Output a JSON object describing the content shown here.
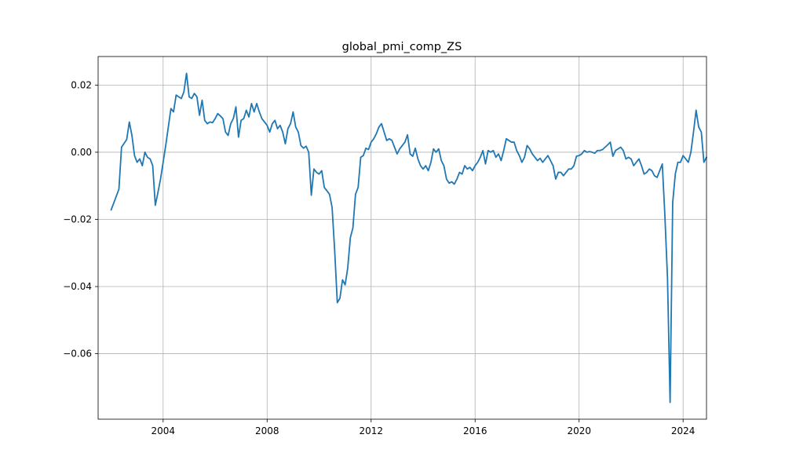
{
  "chart_data": {
    "type": "line",
    "title": "global_pmi_comp_ZS",
    "xlabel": "",
    "ylabel": "",
    "x_tick_labels": [
      "2004",
      "2008",
      "2012",
      "2016",
      "2020",
      "2024"
    ],
    "x_tick_values": [
      2004,
      2008,
      2012,
      2016,
      2020,
      2024
    ],
    "y_tick_labels": [
      "−0.06",
      "−0.04",
      "−0.02",
      "0.00",
      "0.02"
    ],
    "y_tick_values": [
      -0.06,
      -0.04,
      -0.02,
      0.0,
      0.02
    ],
    "xlim": [
      2001.5,
      2024.9
    ],
    "ylim": [
      -0.0795,
      0.0285
    ],
    "grid": true,
    "series": [
      {
        "color": "#1f77b4",
        "points": [
          [
            2002.0,
            -0.0172
          ],
          [
            2002.3,
            -0.011
          ],
          [
            2002.4,
            0.0015
          ],
          [
            2002.6,
            0.0038
          ],
          [
            2002.7,
            0.009
          ],
          [
            2002.8,
            0.005
          ],
          [
            2002.9,
            -0.001
          ],
          [
            2003.0,
            -0.003
          ],
          [
            2003.1,
            -0.002
          ],
          [
            2003.2,
            -0.004
          ],
          [
            2003.3,
            0.0
          ],
          [
            2003.4,
            -0.0015
          ],
          [
            2003.5,
            -0.002
          ],
          [
            2003.6,
            -0.004
          ],
          [
            2003.7,
            -0.0158
          ],
          [
            2003.8,
            -0.012
          ],
          [
            2003.9,
            -0.008
          ],
          [
            2004.0,
            -0.003
          ],
          [
            2004.1,
            0.002
          ],
          [
            2004.3,
            0.013
          ],
          [
            2004.4,
            0.012
          ],
          [
            2004.5,
            0.017
          ],
          [
            2004.6,
            0.0165
          ],
          [
            2004.7,
            0.016
          ],
          [
            2004.8,
            0.018
          ],
          [
            2004.9,
            0.0235
          ],
          [
            2005.0,
            0.0165
          ],
          [
            2005.1,
            0.016
          ],
          [
            2005.2,
            0.0175
          ],
          [
            2005.3,
            0.0165
          ],
          [
            2005.4,
            0.011
          ],
          [
            2005.5,
            0.0155
          ],
          [
            2005.6,
            0.0095
          ],
          [
            2005.7,
            0.0085
          ],
          [
            2005.8,
            0.009
          ],
          [
            2005.9,
            0.0088
          ],
          [
            2006.0,
            0.01
          ],
          [
            2006.1,
            0.0115
          ],
          [
            2006.2,
            0.0108
          ],
          [
            2006.3,
            0.01
          ],
          [
            2006.4,
            0.006
          ],
          [
            2006.5,
            0.005
          ],
          [
            2006.6,
            0.0085
          ],
          [
            2006.7,
            0.01
          ],
          [
            2006.8,
            0.0135
          ],
          [
            2006.9,
            0.0045
          ],
          [
            2007.0,
            0.0095
          ],
          [
            2007.1,
            0.01
          ],
          [
            2007.2,
            0.0125
          ],
          [
            2007.3,
            0.0105
          ],
          [
            2007.4,
            0.0145
          ],
          [
            2007.5,
            0.012
          ],
          [
            2007.6,
            0.0145
          ],
          [
            2007.7,
            0.012
          ],
          [
            2007.8,
            0.01
          ],
          [
            2007.9,
            0.009
          ],
          [
            2008.0,
            0.008
          ],
          [
            2008.1,
            0.006
          ],
          [
            2008.2,
            0.0085
          ],
          [
            2008.3,
            0.0095
          ],
          [
            2008.4,
            0.007
          ],
          [
            2008.5,
            0.008
          ],
          [
            2008.6,
            0.006
          ],
          [
            2008.7,
            0.0025
          ],
          [
            2008.8,
            0.007
          ],
          [
            2008.9,
            0.0085
          ],
          [
            2009.0,
            0.012
          ],
          [
            2009.1,
            0.0075
          ],
          [
            2009.2,
            0.006
          ],
          [
            2009.3,
            0.002
          ],
          [
            2009.4,
            0.0012
          ],
          [
            2009.5,
            0.0018
          ],
          [
            2009.6,
            0.0
          ],
          [
            2009.7,
            -0.0128
          ],
          [
            2009.8,
            -0.005
          ],
          [
            2009.9,
            -0.006
          ],
          [
            2010.0,
            -0.0065
          ],
          [
            2010.1,
            -0.0055
          ],
          [
            2010.2,
            -0.0105
          ],
          [
            2010.3,
            -0.0115
          ],
          [
            2010.4,
            -0.0125
          ],
          [
            2010.5,
            -0.0165
          ],
          [
            2010.6,
            -0.0295
          ],
          [
            2010.7,
            -0.0448
          ],
          [
            2010.8,
            -0.0435
          ],
          [
            2010.9,
            -0.038
          ],
          [
            2011.0,
            -0.0395
          ],
          [
            2011.1,
            -0.0345
          ],
          [
            2011.2,
            -0.0255
          ],
          [
            2011.3,
            -0.0225
          ],
          [
            2011.4,
            -0.0125
          ],
          [
            2011.5,
            -0.0105
          ],
          [
            2011.6,
            -0.0015
          ],
          [
            2011.7,
            -0.001
          ],
          [
            2011.8,
            0.0012
          ],
          [
            2011.9,
            0.0008
          ],
          [
            2012.0,
            0.003
          ],
          [
            2012.1,
            0.004
          ],
          [
            2012.2,
            0.0055
          ],
          [
            2012.3,
            0.0075
          ],
          [
            2012.4,
            0.0085
          ],
          [
            2012.5,
            0.006
          ],
          [
            2012.6,
            0.0035
          ],
          [
            2012.7,
            0.004
          ],
          [
            2012.8,
            0.0035
          ],
          [
            2012.9,
            0.0015
          ],
          [
            2013.0,
            -0.0005
          ],
          [
            2013.1,
            0.001
          ],
          [
            2013.2,
            0.002
          ],
          [
            2013.3,
            0.003
          ],
          [
            2013.4,
            0.0052
          ],
          [
            2013.5,
            -0.0005
          ],
          [
            2013.6,
            -0.0012
          ],
          [
            2013.7,
            0.0012
          ],
          [
            2013.8,
            -0.002
          ],
          [
            2013.9,
            -0.004
          ],
          [
            2014.0,
            -0.005
          ],
          [
            2014.1,
            -0.004
          ],
          [
            2014.2,
            -0.0055
          ],
          [
            2014.3,
            -0.003
          ],
          [
            2014.4,
            0.001
          ],
          [
            2014.5,
            0.0
          ],
          [
            2014.6,
            0.001
          ],
          [
            2014.7,
            -0.0025
          ],
          [
            2014.8,
            -0.004
          ],
          [
            2014.9,
            -0.008
          ],
          [
            2015.0,
            -0.0092
          ],
          [
            2015.1,
            -0.0088
          ],
          [
            2015.2,
            -0.0095
          ],
          [
            2015.3,
            -0.008
          ],
          [
            2015.4,
            -0.006
          ],
          [
            2015.5,
            -0.0065
          ],
          [
            2015.6,
            -0.004
          ],
          [
            2015.7,
            -0.005
          ],
          [
            2015.8,
            -0.0045
          ],
          [
            2015.9,
            -0.0055
          ],
          [
            2016.0,
            -0.004
          ],
          [
            2016.1,
            -0.003
          ],
          [
            2016.2,
            -0.0015
          ],
          [
            2016.3,
            0.0005
          ],
          [
            2016.4,
            -0.0035
          ],
          [
            2016.5,
            0.0005
          ],
          [
            2016.6,
            0.0
          ],
          [
            2016.7,
            0.0005
          ],
          [
            2016.8,
            -0.0015
          ],
          [
            2016.9,
            -0.0005
          ],
          [
            2017.0,
            -0.0025
          ],
          [
            2017.1,
            0.0005
          ],
          [
            2017.2,
            0.004
          ],
          [
            2017.3,
            0.0035
          ],
          [
            2017.4,
            0.003
          ],
          [
            2017.5,
            0.003
          ],
          [
            2017.6,
            0.0005
          ],
          [
            2017.7,
            -0.001
          ],
          [
            2017.8,
            -0.003
          ],
          [
            2017.9,
            -0.0015
          ],
          [
            2018.0,
            0.002
          ],
          [
            2018.1,
            0.001
          ],
          [
            2018.2,
            -0.0005
          ],
          [
            2018.3,
            -0.0015
          ],
          [
            2018.4,
            -0.0025
          ],
          [
            2018.5,
            -0.0018
          ],
          [
            2018.6,
            -0.003
          ],
          [
            2018.7,
            -0.002
          ],
          [
            2018.8,
            -0.001
          ],
          [
            2018.9,
            -0.0025
          ],
          [
            2019.0,
            -0.004
          ],
          [
            2019.1,
            -0.008
          ],
          [
            2019.2,
            -0.006
          ],
          [
            2019.3,
            -0.006
          ],
          [
            2019.4,
            -0.007
          ],
          [
            2019.5,
            -0.006
          ],
          [
            2019.6,
            -0.005
          ],
          [
            2019.7,
            -0.005
          ],
          [
            2019.8,
            -0.004
          ],
          [
            2019.9,
            -0.0012
          ],
          [
            2020.0,
            -0.001
          ],
          [
            2020.1,
            -0.0005
          ],
          [
            2020.2,
            0.0005
          ],
          [
            2020.3,
            0.0
          ],
          [
            2020.4,
            0.0002
          ],
          [
            2020.5,
            0.0
          ],
          [
            2020.6,
            -0.0003
          ],
          [
            2020.7,
            0.0005
          ],
          [
            2020.8,
            0.0005
          ],
          [
            2020.9,
            0.0008
          ],
          [
            2021.0,
            0.0015
          ],
          [
            2021.1,
            0.0022
          ],
          [
            2021.2,
            0.003
          ],
          [
            2021.3,
            -0.0012
          ],
          [
            2021.4,
            0.0005
          ],
          [
            2021.5,
            0.001
          ],
          [
            2021.6,
            0.0015
          ],
          [
            2021.7,
            0.0005
          ],
          [
            2021.8,
            -0.002
          ],
          [
            2021.9,
            -0.0015
          ],
          [
            2022.0,
            -0.002
          ],
          [
            2022.1,
            -0.004
          ],
          [
            2022.2,
            -0.003
          ],
          [
            2022.3,
            -0.002
          ],
          [
            2022.4,
            -0.004
          ],
          [
            2022.5,
            -0.0065
          ],
          [
            2022.6,
            -0.006
          ],
          [
            2022.7,
            -0.005
          ],
          [
            2022.8,
            -0.0055
          ],
          [
            2022.9,
            -0.007
          ],
          [
            2023.0,
            -0.0075
          ],
          [
            2023.1,
            -0.0055
          ],
          [
            2023.2,
            -0.0035
          ],
          [
            2023.3,
            -0.019
          ],
          [
            2023.4,
            -0.0375
          ],
          [
            2023.5,
            -0.0745
          ],
          [
            2023.6,
            -0.015
          ],
          [
            2023.7,
            -0.0065
          ],
          [
            2023.8,
            -0.003
          ],
          [
            2023.9,
            -0.003
          ],
          [
            2024.0,
            -0.001
          ],
          [
            2024.1,
            -0.002
          ],
          [
            2024.2,
            -0.003
          ],
          [
            2024.3,
            0.0
          ],
          [
            2024.4,
            0.006
          ],
          [
            2024.5,
            0.0125
          ],
          [
            2024.6,
            0.0075
          ],
          [
            2024.7,
            0.006
          ],
          [
            2024.8,
            -0.003
          ],
          [
            2024.9,
            -0.0015
          ]
        ]
      }
    ]
  }
}
